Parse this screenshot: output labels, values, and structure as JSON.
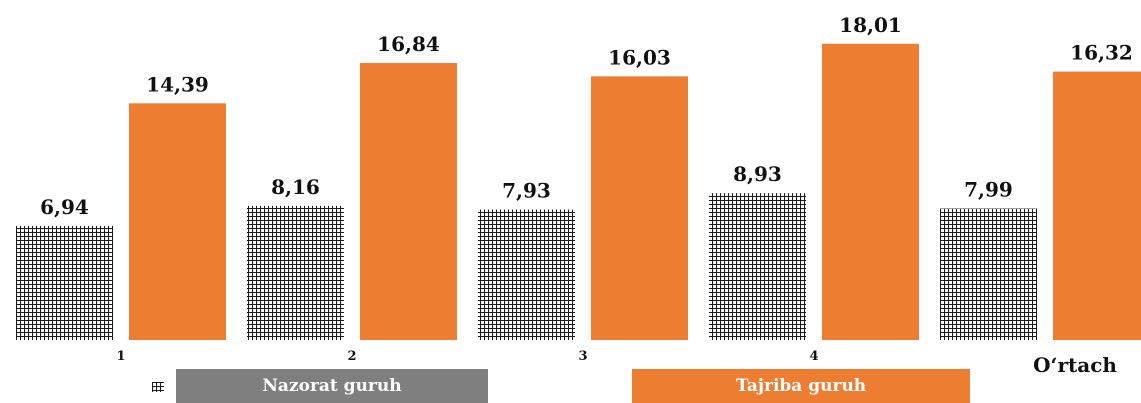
{
  "chart_data": {
    "type": "bar",
    "categories": [
      "1",
      "2",
      "3",
      "4",
      "O‘rtach"
    ],
    "series": [
      {
        "name": "Nazorat guruh",
        "values": [
          6.94,
          8.16,
          7.93,
          8.93,
          7.99
        ],
        "labels": [
          "6,94",
          "8,16",
          "7,93",
          "8,93",
          "7,99"
        ],
        "color": "#1a1a1a",
        "pattern": "grid-hatch"
      },
      {
        "name": "Tajriba guruh",
        "values": [
          14.39,
          16.84,
          16.03,
          18.01,
          16.32
        ],
        "labels": [
          "14,39",
          "16,84",
          "16,03",
          "18,01",
          "16,32"
        ],
        "color": "#ed7d31"
      }
    ],
    "ylim": [
      0,
      20
    ],
    "grid": false,
    "legend": "bottom",
    "legend_colors": [
      "#7f7f7f",
      "#ed7d31"
    ]
  }
}
